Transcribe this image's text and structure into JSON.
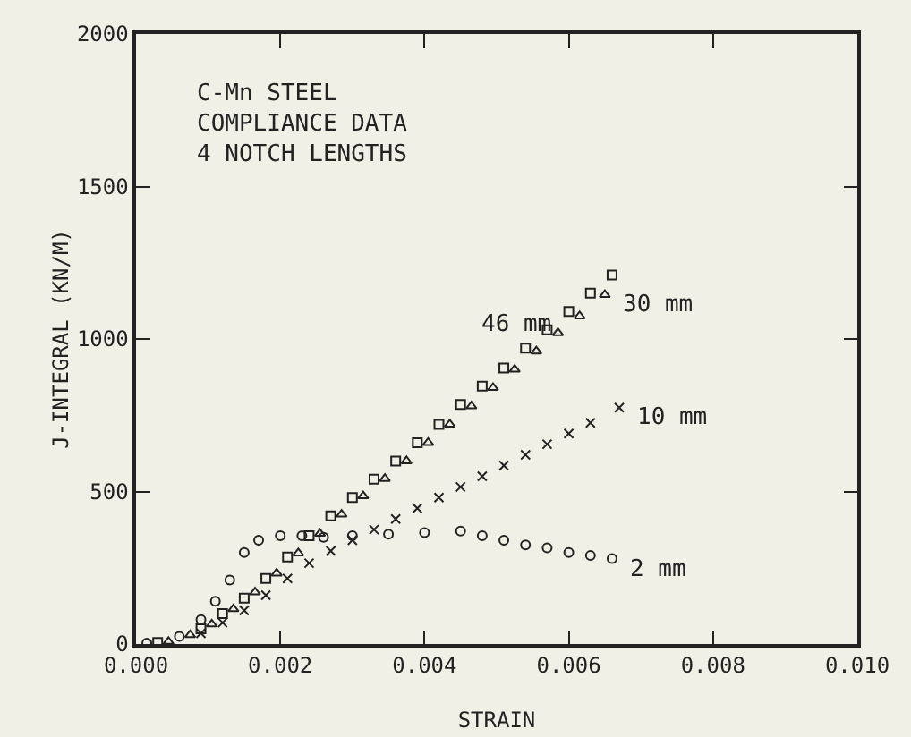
{
  "chart_data": {
    "type": "scatter",
    "xlabel": "STRAIN",
    "ylabel": "J-INTEGRAL (KN/M)",
    "xlim": [
      0,
      0.01
    ],
    "xticks": [
      {
        "value": 0,
        "label": "0.000"
      },
      {
        "value": 0.002,
        "label": "0.002"
      },
      {
        "value": 0.004,
        "label": "0.004"
      },
      {
        "value": 0.006,
        "label": "0.006"
      },
      {
        "value": 0.008,
        "label": "0.008"
      },
      {
        "value": 0.01,
        "label": "0.010"
      }
    ],
    "ylim": [
      0,
      2000
    ],
    "yticks": [
      0,
      500,
      1000,
      1500,
      2000
    ],
    "grid": false,
    "legend": false,
    "series": [
      {
        "name": "46 mm",
        "marker": "square",
        "color": "#222222",
        "x": [
          0.0003,
          0.0009,
          0.0012,
          0.0015,
          0.0018,
          0.0021,
          0.0024,
          0.0027,
          0.003,
          0.0033,
          0.0036,
          0.0039,
          0.0042,
          0.0045,
          0.0048,
          0.0051,
          0.0054,
          0.0057,
          0.006,
          0.0063,
          0.0066
        ],
        "values": [
          5,
          50,
          100,
          150,
          215,
          285,
          355,
          420,
          480,
          540,
          600,
          660,
          720,
          785,
          845,
          905,
          970,
          1030,
          1090,
          1150,
          1210
        ]
      },
      {
        "name": "30 mm",
        "marker": "triangle",
        "color": "#222222",
        "x": [
          0.00045,
          0.00075,
          0.00105,
          0.00135,
          0.00165,
          0.00195,
          0.00225,
          0.00255,
          0.00285,
          0.00315,
          0.00345,
          0.00375,
          0.00405,
          0.00435,
          0.00465,
          0.00495,
          0.00525,
          0.00555,
          0.00585,
          0.00615,
          0.0065
        ],
        "values": [
          8,
          30,
          65,
          115,
          170,
          232,
          298,
          362,
          425,
          485,
          542,
          600,
          660,
          720,
          780,
          840,
          900,
          960,
          1020,
          1075,
          1145
        ]
      },
      {
        "name": "10 mm",
        "marker": "cross",
        "color": "#222222",
        "x": [
          0.0009,
          0.0012,
          0.0015,
          0.0018,
          0.0021,
          0.0024,
          0.0027,
          0.003,
          0.0033,
          0.0036,
          0.0039,
          0.0042,
          0.0045,
          0.0048,
          0.0051,
          0.0054,
          0.0057,
          0.006,
          0.0063,
          0.0067
        ],
        "values": [
          35,
          70,
          110,
          160,
          215,
          265,
          305,
          340,
          375,
          410,
          445,
          480,
          515,
          550,
          585,
          620,
          655,
          690,
          725,
          775
        ]
      },
      {
        "name": "2 mm",
        "marker": "circle",
        "color": "#222222",
        "x": [
          0.00015,
          0.0006,
          0.0009,
          0.0011,
          0.0013,
          0.0015,
          0.0017,
          0.002,
          0.0023,
          0.0026,
          0.003,
          0.0035,
          0.004,
          0.0045,
          0.0048,
          0.0051,
          0.0054,
          0.0057,
          0.006,
          0.0063,
          0.0066
        ],
        "values": [
          3,
          25,
          80,
          140,
          210,
          300,
          340,
          355,
          355,
          350,
          355,
          360,
          365,
          370,
          355,
          340,
          325,
          315,
          300,
          290,
          280
        ]
      }
    ],
    "annotations": [
      "C-Mn STEEL\nCOMPLIANCE DATA\n4 NOTCH LENGTHS"
    ]
  }
}
